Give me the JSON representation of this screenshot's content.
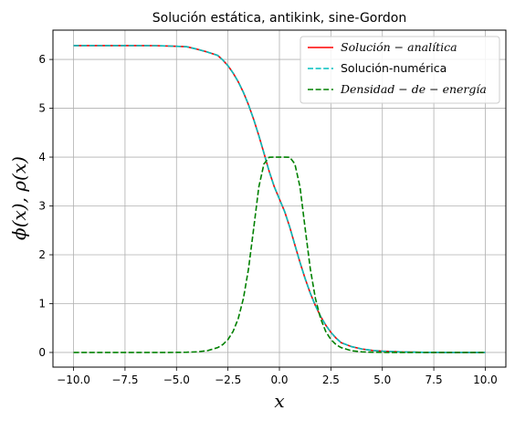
{
  "chart_data": {
    "type": "line",
    "title": "Solución estática, antikink, sine-Gordon",
    "xlabel": "x",
    "ylabel": "ϕ(x), ρ(x)",
    "xlim": [
      -11.0,
      11.0
    ],
    "ylim": [
      -0.3,
      6.6
    ],
    "xticks": [
      -10.0,
      -7.5,
      -5.0,
      -2.5,
      0.0,
      2.5,
      5.0,
      7.5,
      10.0
    ],
    "xtick_labels": [
      "−10.0",
      "−7.5",
      "−5.0",
      "−2.5",
      "0.0",
      "2.5",
      "5.0",
      "7.5",
      "10.0"
    ],
    "yticks": [
      0,
      1,
      2,
      3,
      4,
      5,
      6
    ],
    "ytick_labels": [
      "0",
      "1",
      "2",
      "3",
      "4",
      "5",
      "6"
    ],
    "grid": true,
    "legend_position": "top-right",
    "x": [
      -10,
      -9,
      -8,
      -7,
      -6,
      -5,
      -4.5,
      -4,
      -3.5,
      -3,
      -2.75,
      -2.5,
      -2.25,
      -2,
      -1.75,
      -1.5,
      -1.25,
      -1,
      -0.75,
      -0.5,
      -0.25,
      0,
      0.25,
      0.5,
      0.75,
      1,
      1.25,
      1.5,
      1.75,
      2,
      2.25,
      2.5,
      2.75,
      3,
      3.5,
      4,
      4.5,
      5,
      6,
      7,
      8,
      9,
      10
    ],
    "series": [
      {
        "name": "Solución − analítica",
        "style": "solid",
        "color": "#ff0000",
        "values": [
          6.2832,
          6.2831,
          6.2831,
          6.2829,
          6.2822,
          6.2697,
          6.2605,
          6.2101,
          6.1521,
          6.0836,
          5.9888,
          5.8704,
          5.7226,
          5.5428,
          5.3264,
          5.0698,
          4.7724,
          4.4393,
          4.0803,
          3.712,
          3.3937,
          3.1416,
          2.8895,
          2.5712,
          2.2029,
          1.8439,
          1.5108,
          1.2134,
          0.9568,
          0.7404,
          0.5606,
          0.4128,
          0.2944,
          0.2,
          0.12,
          0.072,
          0.043,
          0.027,
          0.01,
          0.0035,
          0.0013,
          0.0005,
          0.0002
        ]
      },
      {
        "name": "Solución-numérica",
        "style": "dashed",
        "color": "#00bfbf",
        "values": [
          6.2832,
          6.2831,
          6.2831,
          6.2829,
          6.2822,
          6.2697,
          6.2605,
          6.2101,
          6.1521,
          6.0836,
          5.9888,
          5.8704,
          5.7226,
          5.5428,
          5.3264,
          5.0698,
          4.7724,
          4.4393,
          4.0803,
          3.712,
          3.3937,
          3.1416,
          2.8895,
          2.5712,
          2.2029,
          1.8439,
          1.5108,
          1.2134,
          0.9568,
          0.7404,
          0.5606,
          0.4128,
          0.2944,
          0.2,
          0.12,
          0.072,
          0.043,
          0.027,
          0.01,
          0.0035,
          0.0013,
          0.0005,
          0.0002
        ]
      },
      {
        "name": "Densidad − de − energía",
        "style": "dashed",
        "color": "#008000",
        "values": [
          0.0,
          0.0,
          0.0,
          0.0,
          0.0,
          0.0018,
          0.0049,
          0.0134,
          0.0364,
          0.0988,
          0.162,
          0.2648,
          0.4306,
          0.6945,
          1.1039,
          1.7135,
          2.5398,
          3.3896,
          3.8617,
          3.9974,
          4.0,
          4.0,
          4.0,
          3.9974,
          3.8617,
          3.3896,
          2.5398,
          1.7135,
          1.1039,
          0.6945,
          0.4306,
          0.2648,
          0.162,
          0.0988,
          0.0364,
          0.0134,
          0.0049,
          0.0018,
          0.0002,
          0.0,
          0.0,
          0.0,
          0.0
        ]
      }
    ]
  }
}
